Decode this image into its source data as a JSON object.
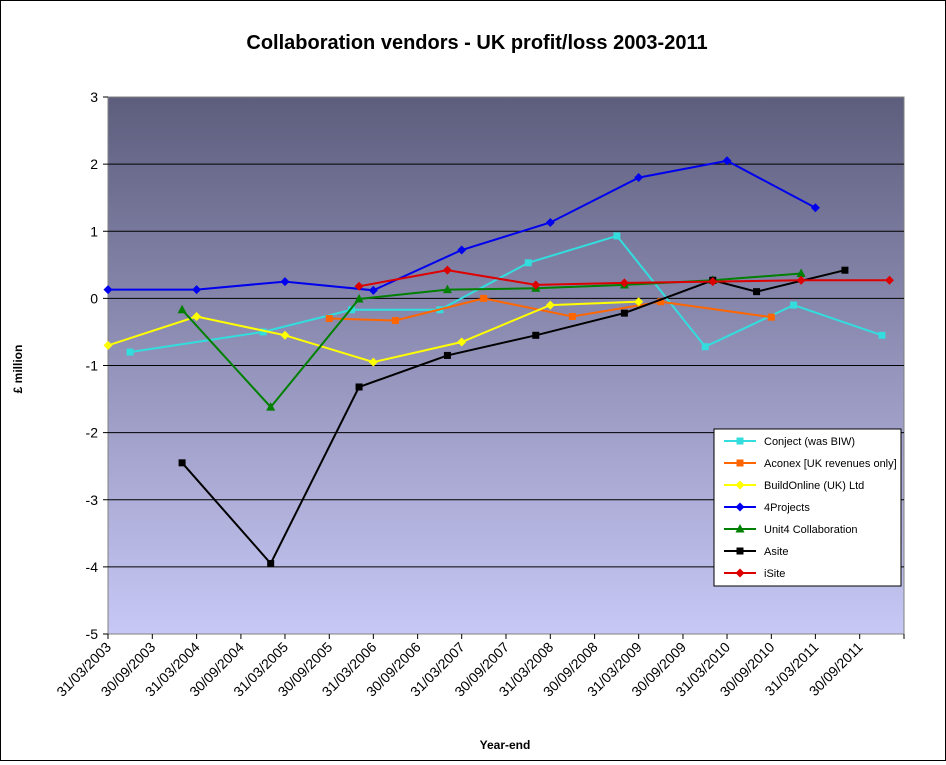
{
  "chart_data": {
    "type": "line",
    "title": "Collaboration vendors - UK profit/loss 2003-2011",
    "xlabel": "Year-end",
    "ylabel": "£ million",
    "ylim": [
      -5,
      3
    ],
    "yticks": [
      -5,
      -4,
      -3,
      -2,
      -1,
      0,
      1,
      2,
      3
    ],
    "categories": [
      "31/03/2003",
      "30/09/2003",
      "31/03/2004",
      "30/09/2004",
      "31/03/2005",
      "30/09/2005",
      "31/03/2006",
      "30/09/2006",
      "31/03/2007",
      "30/09/2007",
      "31/03/2008",
      "30/09/2008",
      "31/03/2009",
      "30/09/2009",
      "31/03/2010",
      "30/09/2010",
      "31/03/2011",
      "30/09/2011"
    ],
    "grid": true,
    "legend_position": "right",
    "series": [
      {
        "name": "Conject (was BIW)",
        "color": "#33dddd",
        "marker": "square",
        "points": [
          [
            "2003-06-30",
            -0.8
          ],
          [
            "2004-12-31",
            -0.5
          ],
          [
            "2005-12-31",
            -0.17
          ],
          [
            "2006-12-31",
            -0.17
          ],
          [
            "2007-12-31",
            0.53
          ],
          [
            "2008-12-31",
            0.93
          ],
          [
            "2009-12-31",
            -0.72
          ],
          [
            "2010-12-31",
            -0.1
          ],
          [
            "2011-12-31",
            -0.55
          ]
        ]
      },
      {
        "name": "Aconex [UK revenues only]",
        "color": "#ff6600",
        "marker": "square",
        "points": [
          [
            "2005-09-30",
            -0.3
          ],
          [
            "2006-06-30",
            -0.33
          ],
          [
            "2007-06-30",
            0.0
          ],
          [
            "2008-06-30",
            -0.27
          ],
          [
            "2009-06-30",
            -0.05
          ],
          [
            "2010-09-30",
            -0.28
          ]
        ]
      },
      {
        "name": "BuildOnline (UK) Ltd",
        "color": "#ffff00",
        "marker": "diamond",
        "points": [
          [
            "2003-03-31",
            -0.7
          ],
          [
            "2004-03-31",
            -0.27
          ],
          [
            "2005-03-31",
            -0.55
          ],
          [
            "2006-03-31",
            -0.95
          ],
          [
            "2007-03-31",
            -0.65
          ],
          [
            "2008-03-31",
            -0.1
          ],
          [
            "2009-03-31",
            -0.05
          ]
        ]
      },
      {
        "name": "4Projects",
        "color": "#0000ee",
        "marker": "diamond",
        "points": [
          [
            "2003-03-31",
            0.13
          ],
          [
            "2004-03-31",
            0.13
          ],
          [
            "2005-03-31",
            0.25
          ],
          [
            "2006-03-31",
            0.12
          ],
          [
            "2007-03-31",
            0.72
          ],
          [
            "2008-03-31",
            1.13
          ],
          [
            "2009-03-31",
            1.8
          ],
          [
            "2010-03-31",
            2.05
          ],
          [
            "2011-03-31",
            1.35
          ]
        ]
      },
      {
        "name": "Unit4 Collaboration",
        "color": "#008000",
        "marker": "triangle",
        "points": [
          [
            "2004-01-31",
            -0.17
          ],
          [
            "2005-01-31",
            -1.62
          ],
          [
            "2006-01-31",
            -0.01
          ],
          [
            "2007-01-31",
            0.13
          ],
          [
            "2008-01-31",
            0.15
          ],
          [
            "2009-01-31",
            0.2
          ],
          [
            "2010-01-31",
            0.27
          ],
          [
            "2011-01-31",
            0.37
          ]
        ]
      },
      {
        "name": "Asite",
        "color": "#000000",
        "marker": "square",
        "points": [
          [
            "2004-01-31",
            -2.45
          ],
          [
            "2005-01-31",
            -3.95
          ],
          [
            "2006-01-31",
            -1.32
          ],
          [
            "2007-01-31",
            -0.85
          ],
          [
            "2008-01-31",
            -0.55
          ],
          [
            "2009-01-31",
            -0.22
          ],
          [
            "2010-01-31",
            0.27
          ],
          [
            "2010-07-31",
            0.1
          ],
          [
            "2011-07-31",
            0.42
          ]
        ]
      },
      {
        "name": "iSite",
        "color": "#dd0000",
        "marker": "diamond",
        "points": [
          [
            "2006-01-31",
            0.18
          ],
          [
            "2007-01-31",
            0.42
          ],
          [
            "2008-01-31",
            0.2
          ],
          [
            "2009-01-31",
            0.23
          ],
          [
            "2010-01-31",
            0.25
          ],
          [
            "2011-01-31",
            0.27
          ],
          [
            "2012-01-31",
            0.27
          ]
        ]
      }
    ]
  }
}
